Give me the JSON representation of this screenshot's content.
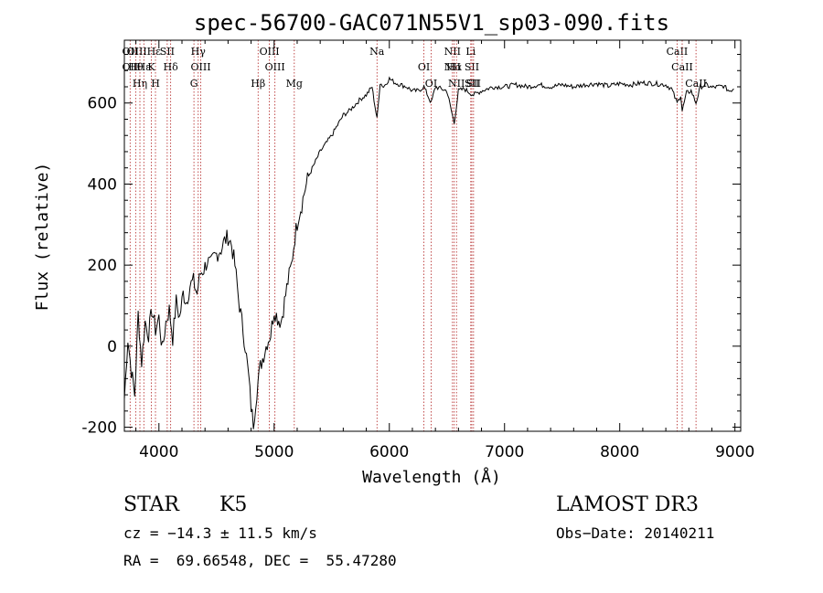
{
  "chart_data": {
    "type": "line",
    "title": "spec-56700-GAC071N55V1_sp03-090.fits",
    "xlabel": "Wavelength (Å)",
    "ylabel": "Flux (relative)",
    "xlim": [
      3700,
      9050
    ],
    "ylim": [
      -210,
      755
    ],
    "xticks": [
      4000,
      5000,
      6000,
      7000,
      8000,
      9000
    ],
    "yticks": [
      -200,
      0,
      200,
      400,
      600
    ],
    "grid": false,
    "series": [
      {
        "x": [
          3700,
          3730,
          3760,
          3790,
          3820,
          3850,
          3880,
          3910,
          3940,
          3970,
          4000,
          4030,
          4060,
          4090,
          4120,
          4150,
          4180,
          4210,
          4240,
          4270,
          4300,
          4330,
          4360,
          4390,
          4420,
          4450,
          4480,
          4510,
          4540,
          4570,
          4600,
          4630,
          4660,
          4690,
          4720,
          4750,
          4780,
          4800,
          4820,
          4850,
          4880,
          4910,
          4940,
          4970,
          5000,
          5030,
          5060,
          5090,
          5120,
          5150,
          5180,
          5210,
          5240,
          5270,
          5300,
          5350,
          5400,
          5450,
          5500,
          5550,
          5600,
          5650,
          5700,
          5750,
          5800,
          5850,
          5893,
          5920,
          5950,
          6000,
          6050,
          6100,
          6150,
          6200,
          6250,
          6300,
          6363,
          6400,
          6450,
          6500,
          6563,
          6600,
          6650,
          6700,
          6731,
          6800,
          6900,
          7000,
          7100,
          7200,
          7300,
          7400,
          7500,
          7600,
          7700,
          7800,
          7900,
          8000,
          8100,
          8200,
          8300,
          8400,
          8450,
          8498,
          8530,
          8542,
          8580,
          8620,
          8662,
          8700,
          8750,
          8800,
          8850,
          8900,
          8950,
          8990
        ],
        "y": [
          -130,
          20,
          -60,
          -120,
          80,
          -40,
          60,
          30,
          90,
          40,
          70,
          -10,
          60,
          90,
          20,
          110,
          70,
          130,
          110,
          150,
          160,
          130,
          180,
          190,
          210,
          200,
          220,
          230,
          240,
          260,
          270,
          250,
          200,
          120,
          60,
          0,
          -80,
          -150,
          -190,
          -110,
          -50,
          -20,
          10,
          30,
          90,
          70,
          60,
          110,
          160,
          200,
          270,
          320,
          350,
          390,
          420,
          450,
          480,
          500,
          520,
          545,
          570,
          580,
          595,
          610,
          620,
          640,
          560,
          650,
          640,
          660,
          650,
          645,
          640,
          630,
          630,
          640,
          600,
          640,
          635,
          630,
          550,
          630,
          635,
          625,
          620,
          630,
          640,
          640,
          645,
          640,
          645,
          640,
          645,
          640,
          645,
          648,
          642,
          648,
          645,
          650,
          648,
          645,
          635,
          600,
          620,
          580,
          625,
          630,
          600,
          640,
          645,
          638,
          640,
          642,
          630,
          635
        ]
      }
    ],
    "lines": [
      {
        "x": 3750,
        "labels": [
          "OII",
          "OII"
        ]
      },
      {
        "x": 3798,
        "labels": [
          "Hθ"
        ]
      },
      {
        "x": 3835,
        "labels": [
          "Hη"
        ]
      },
      {
        "x": 3869,
        "labels": [
          "OIIIHε",
          "Hε"
        ]
      },
      {
        "x": 3934,
        "labels": [
          "K"
        ]
      },
      {
        "x": 3970,
        "labels": [
          "H"
        ]
      },
      {
        "x": 4072,
        "labels": [
          "SII"
        ]
      },
      {
        "x": 4102,
        "labels": [
          "Hδ"
        ]
      },
      {
        "x": 4304,
        "labels": [
          "G"
        ]
      },
      {
        "x": 4341,
        "labels": [
          "Hγ"
        ]
      },
      {
        "x": 4363,
        "labels": [
          "OIII"
        ]
      },
      {
        "x": 4861,
        "labels": [
          "Hβ"
        ]
      },
      {
        "x": 4959,
        "labels": [
          "OIII"
        ]
      },
      {
        "x": 5007,
        "labels": [
          "OIII"
        ]
      },
      {
        "x": 5175,
        "labels": [
          "Mg"
        ]
      },
      {
        "x": 5893,
        "labels": [
          "Na"
        ]
      },
      {
        "x": 6300,
        "labels": [
          "OI"
        ]
      },
      {
        "x": 6363,
        "labels": [
          "OI"
        ]
      },
      {
        "x": 6548,
        "labels": [
          "NII",
          "NII"
        ]
      },
      {
        "x": 6563,
        "labels": [
          "Hα"
        ]
      },
      {
        "x": 6583,
        "labels": [
          "NII"
        ]
      },
      {
        "x": 6707,
        "labels": [
          "Li"
        ]
      },
      {
        "x": 6716,
        "labels": [
          "SII",
          "SII"
        ]
      },
      {
        "x": 6731,
        "labels": [
          "SII"
        ]
      },
      {
        "x": 8498,
        "labels": [
          "CaII"
        ]
      },
      {
        "x": 8542,
        "labels": [
          "CaII"
        ]
      },
      {
        "x": 8662,
        "labels": [
          "CaII"
        ]
      }
    ]
  },
  "info": {
    "class": "STAR",
    "subclass": "K5",
    "survey": "LAMOST DR3",
    "cz": "cz = −14.3 ± 11.5 km/s",
    "obs_date": "Obs−Date: 20140211",
    "radec": "RA =  69.66548, DEC =  55.47280"
  }
}
